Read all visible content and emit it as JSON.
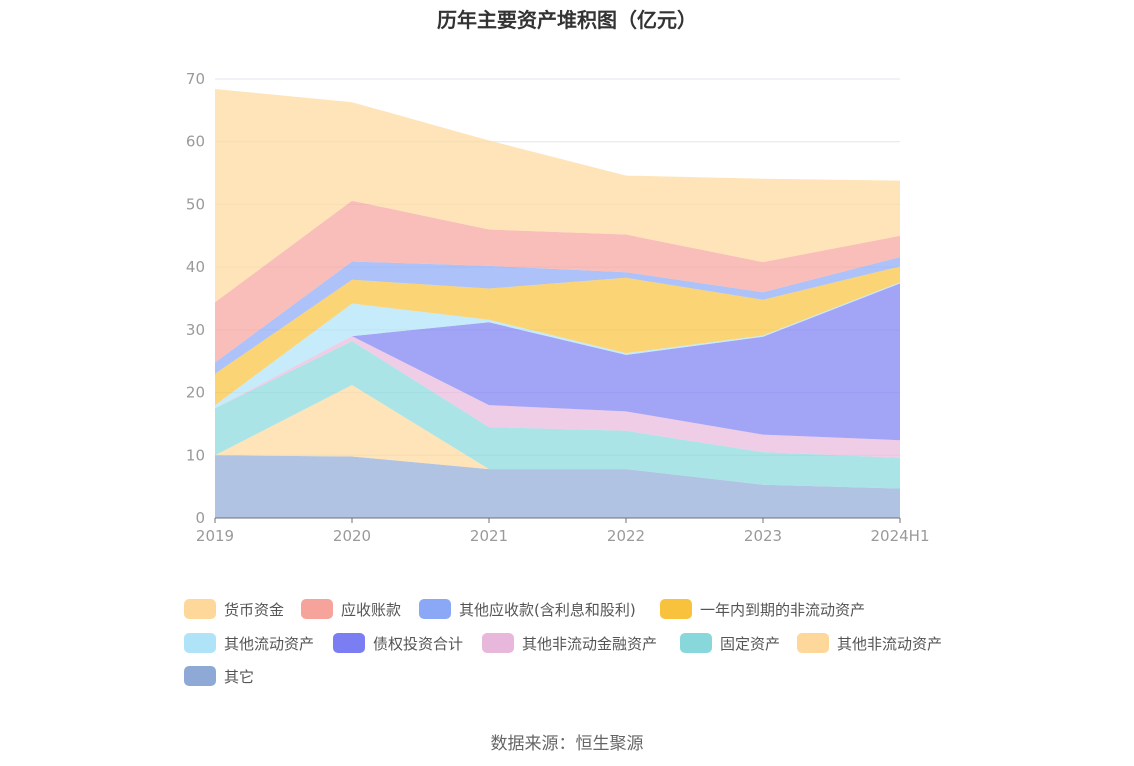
{
  "chart_data": {
    "type": "area",
    "stacked": true,
    "title": "历年主要资产堆积图（亿元）",
    "xlabel": "",
    "ylabel": "",
    "categories": [
      "2019",
      "2020",
      "2021",
      "2022",
      "2023",
      "2024H1"
    ],
    "ylim": [
      0,
      70
    ],
    "yticks": [
      0,
      10,
      20,
      30,
      40,
      50,
      60,
      70
    ],
    "grid": true,
    "legend_position": "bottom",
    "series": [
      {
        "name": "其它",
        "color": "#8fa9d6",
        "values": [
          10.0,
          9.8,
          7.8,
          7.8,
          5.3,
          4.7
        ]
      },
      {
        "name": "其他非流动资产",
        "color": "#fdd89a",
        "values": [
          0.0,
          11.4,
          0.0,
          0.0,
          0.0,
          0.0
        ]
      },
      {
        "name": "固定资产",
        "color": "#88d8db",
        "values": [
          7.5,
          7.0,
          6.7,
          6.1,
          5.2,
          4.9
        ]
      },
      {
        "name": "其他非流动金融资产",
        "color": "#e8b8dc",
        "values": [
          0.0,
          0.8,
          3.5,
          3.1,
          2.8,
          2.8
        ]
      },
      {
        "name": "债权投资合计",
        "color": "#7b7ef2",
        "values": [
          0.0,
          0.0,
          13.2,
          9.0,
          15.6,
          25.0
        ]
      },
      {
        "name": "其他流动资产",
        "color": "#aee3f8",
        "values": [
          0.5,
          5.2,
          0.4,
          0.3,
          0.2,
          0.2
        ]
      },
      {
        "name": "一年内到期的非流动资产",
        "color": "#f9c23c",
        "values": [
          5.0,
          3.8,
          5.0,
          12.0,
          5.7,
          2.5
        ]
      },
      {
        "name": "其他应收款(含利息和股利)",
        "color": "#8aa8f6",
        "values": [
          1.8,
          2.9,
          3.6,
          0.9,
          1.2,
          1.5
        ]
      },
      {
        "name": "应收账款",
        "color": "#f6a39b",
        "values": [
          9.6,
          9.7,
          5.8,
          6.0,
          4.8,
          3.4
        ]
      },
      {
        "name": "货币资金",
        "color": "#fdd89a",
        "values": [
          34.0,
          15.7,
          14.2,
          9.4,
          13.3,
          8.8
        ]
      }
    ],
    "legend": [
      "货币资金",
      "应收账款",
      "其他应收款(含利息和股利)",
      "一年内到期的非流动资产",
      "其他流动资产",
      "债权投资合计",
      "其他非流动金融资产",
      "固定资产",
      "其他非流动资产",
      "其它"
    ]
  },
  "source_text": "数据来源：恒生聚源"
}
